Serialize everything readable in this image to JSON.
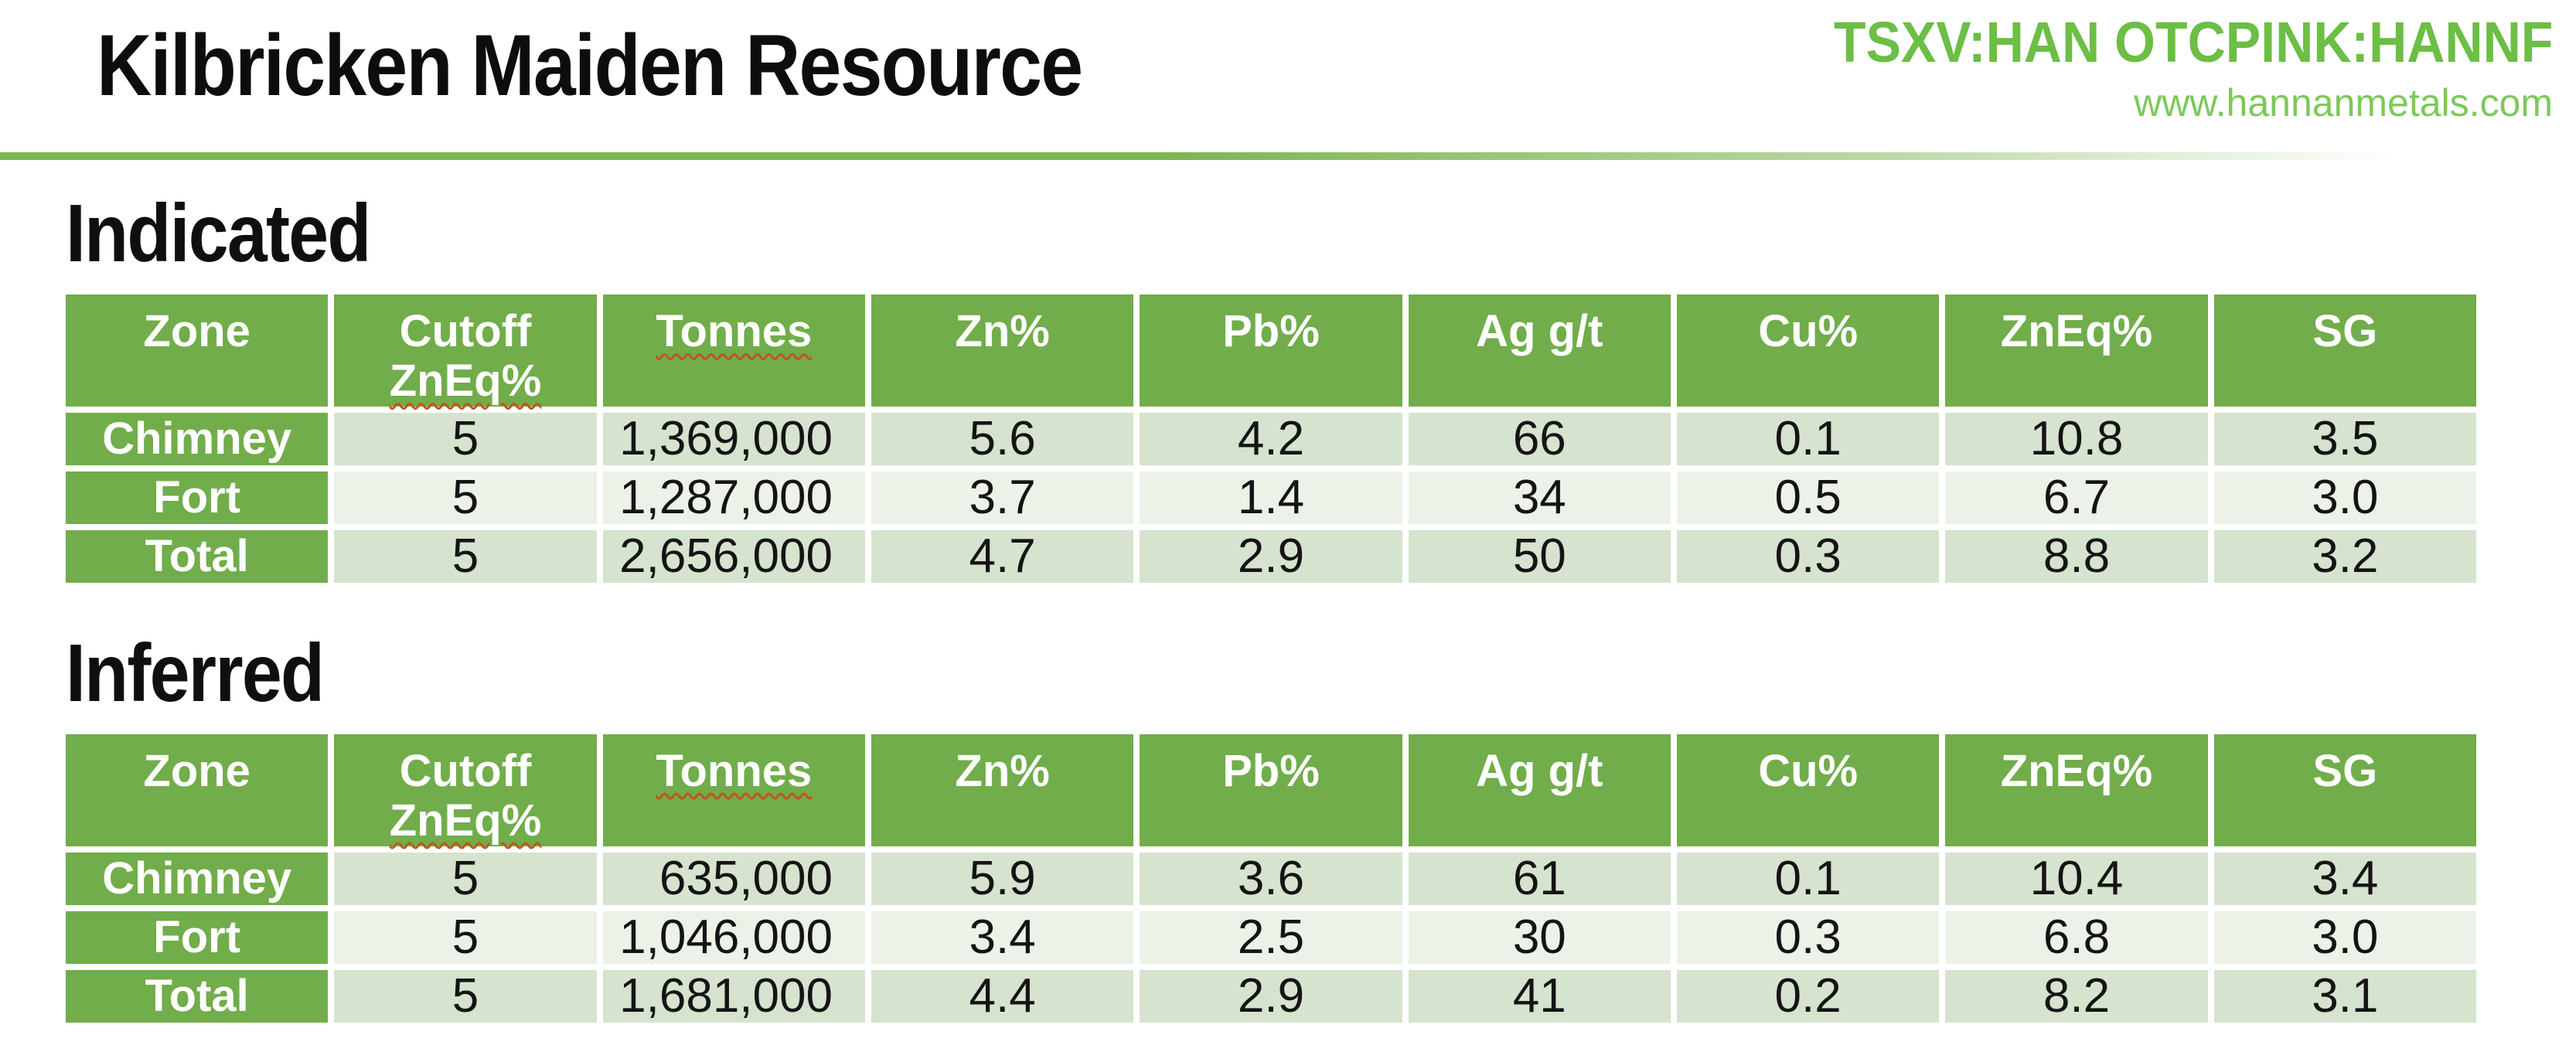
{
  "header": {
    "title": "Kilbricken Maiden Resource",
    "ticker": "TSXV:HAN OTCPINK:HANNF",
    "website": "www.hannanmetals.com"
  },
  "colors": {
    "accent_green": "#71ad4a",
    "band_dark": "#d6e3ce",
    "band_light": "#edf2e9",
    "ticker_green": "#6cbe45",
    "website_green": "#7dc85a",
    "rule_green": "#7cb553",
    "squiggle": "#c2551c"
  },
  "tables": [
    {
      "section": "Indicated",
      "columns": [
        {
          "line1": "Zone"
        },
        {
          "line1": "Cutoff",
          "line2": "ZnEq%",
          "squiggle2": true
        },
        {
          "line1": "Tonnes",
          "squiggle1": true
        },
        {
          "line1": "Zn%"
        },
        {
          "line1": "Pb%"
        },
        {
          "line1": "Ag g/t"
        },
        {
          "line1": "Cu%"
        },
        {
          "line1": "ZnEq%"
        },
        {
          "line1": "SG"
        }
      ],
      "rows": [
        {
          "zone": "Chimney",
          "values": [
            "5",
            "1,369,000",
            "5.6",
            "4.2",
            "66",
            "0.1",
            "10.8",
            "3.5"
          ]
        },
        {
          "zone": "Fort",
          "values": [
            "5",
            "1,287,000",
            "3.7",
            "1.4",
            "34",
            "0.5",
            "6.7",
            "3.0"
          ]
        },
        {
          "zone": "Total",
          "values": [
            "5",
            "2,656,000",
            "4.7",
            "2.9",
            "50",
            "0.3",
            "8.8",
            "3.2"
          ]
        }
      ]
    },
    {
      "section": "Inferred",
      "columns": [
        {
          "line1": "Zone"
        },
        {
          "line1": "Cutoff",
          "line2": "ZnEq%",
          "squiggle2": true
        },
        {
          "line1": "Tonnes",
          "squiggle1": true
        },
        {
          "line1": "Zn%"
        },
        {
          "line1": "Pb%"
        },
        {
          "line1": "Ag g/t"
        },
        {
          "line1": "Cu%"
        },
        {
          "line1": "ZnEq%"
        },
        {
          "line1": "SG"
        }
      ],
      "rows": [
        {
          "zone": "Chimney",
          "values": [
            "5",
            "635,000",
            "5.9",
            "3.6",
            "61",
            "0.1",
            "10.4",
            "3.4"
          ]
        },
        {
          "zone": "Fort",
          "values": [
            "5",
            "1,046,000",
            "3.4",
            "2.5",
            "30",
            "0.3",
            "6.8",
            "3.0"
          ]
        },
        {
          "zone": "Total",
          "values": [
            "5",
            "1,681,000",
            "4.4",
            "2.9",
            "41",
            "0.2",
            "8.2",
            "3.1"
          ]
        }
      ]
    }
  ]
}
